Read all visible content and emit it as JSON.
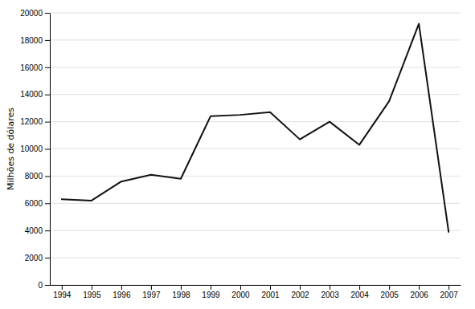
{
  "chart_data": {
    "type": "line",
    "ylabel": "Milhões de dólares",
    "x": [
      1994,
      1995,
      1996,
      1997,
      1998,
      1999,
      2000,
      2001,
      2002,
      2003,
      2004,
      2005,
      2006,
      2007
    ],
    "values": [
      6300,
      6200,
      7600,
      8100,
      7800,
      12400,
      12500,
      12700,
      10700,
      12000,
      10300,
      13500,
      19200,
      3900
    ],
    "color": "#111111",
    "xlim": [
      1993.6,
      2007.4
    ],
    "xticks": [
      1994,
      1995,
      1996,
      1997,
      1998,
      1999,
      2000,
      2001,
      2002,
      2003,
      2004,
      2005,
      2006,
      2007
    ],
    "ylim": [
      0,
      20000
    ],
    "yticks": [
      0,
      2000,
      4000,
      6000,
      8000,
      10000,
      12000,
      14000,
      16000,
      18000,
      20000
    ],
    "grid": true
  }
}
